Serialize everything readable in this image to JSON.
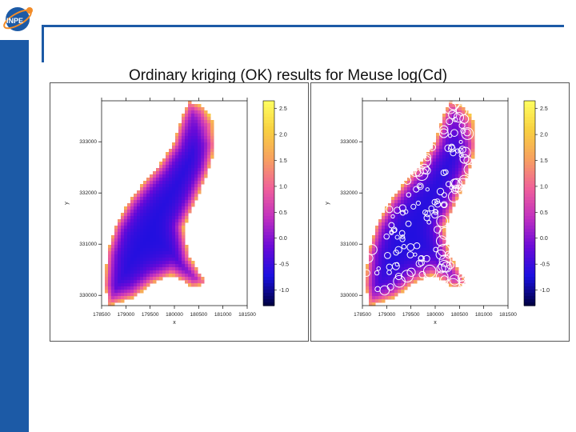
{
  "slide": {
    "title": "Ordinary kriging (OK) results for Meuse log(Cd)",
    "logo_text": "INPE",
    "accent_color": "#1c5aa6"
  },
  "chart_data": [
    {
      "type": "heatmap",
      "panel": "left",
      "xlabel": "x",
      "ylabel": "y",
      "x_ticks": [
        178500,
        179000,
        179500,
        180000,
        180500,
        181000,
        181500
      ],
      "x_tick_labels": [
        "178500",
        "179000",
        "179500",
        "180000",
        "180500",
        "181000",
        "181500"
      ],
      "y_ticks": [
        330000,
        331000,
        332000,
        333000
      ],
      "y_tick_labels": [
        "330000",
        "331000",
        "332000",
        "333000"
      ],
      "colorbar": {
        "ticks": [
          -1.0,
          -0.5,
          0.0,
          0.5,
          1.0,
          1.5,
          2.0,
          2.5
        ],
        "tick_labels": [
          "-1.0",
          "-0.5",
          "0.0",
          "0.5",
          "1.0",
          "1.5",
          "2.0",
          "2.5"
        ],
        "range": [
          -1.3,
          2.65
        ],
        "colors": [
          "#000040",
          "#1a10e0",
          "#6a0ad8",
          "#c030c0",
          "#f0609a",
          "#f7a060",
          "#f8d040",
          "#ffff60"
        ]
      },
      "points_overlay": false
    },
    {
      "type": "heatmap",
      "panel": "right",
      "xlabel": "x",
      "ylabel": "y",
      "x_ticks": [
        178500,
        179000,
        179500,
        180000,
        180500,
        181000,
        181500
      ],
      "x_tick_labels": [
        "178500",
        "179000",
        "179500",
        "180000",
        "180500",
        "181000",
        "181500"
      ],
      "y_ticks": [
        330000,
        331000,
        332000,
        333000
      ],
      "y_tick_labels": [
        "330000",
        "331000",
        "332000",
        "333000"
      ],
      "colorbar": {
        "ticks": [
          -1.0,
          -0.5,
          0.0,
          0.5,
          1.0,
          1.5,
          2.0,
          2.5
        ],
        "tick_labels": [
          "-1.0",
          "-0.5",
          "0.0",
          "0.5",
          "1.0",
          "1.5",
          "2.0",
          "2.5"
        ],
        "range": [
          -1.3,
          2.65
        ],
        "colors": [
          "#000040",
          "#1a10e0",
          "#6a0ad8",
          "#c030c0",
          "#f0609a",
          "#f7a060",
          "#f8d040",
          "#ffff60"
        ]
      },
      "points_overlay": true
    }
  ]
}
